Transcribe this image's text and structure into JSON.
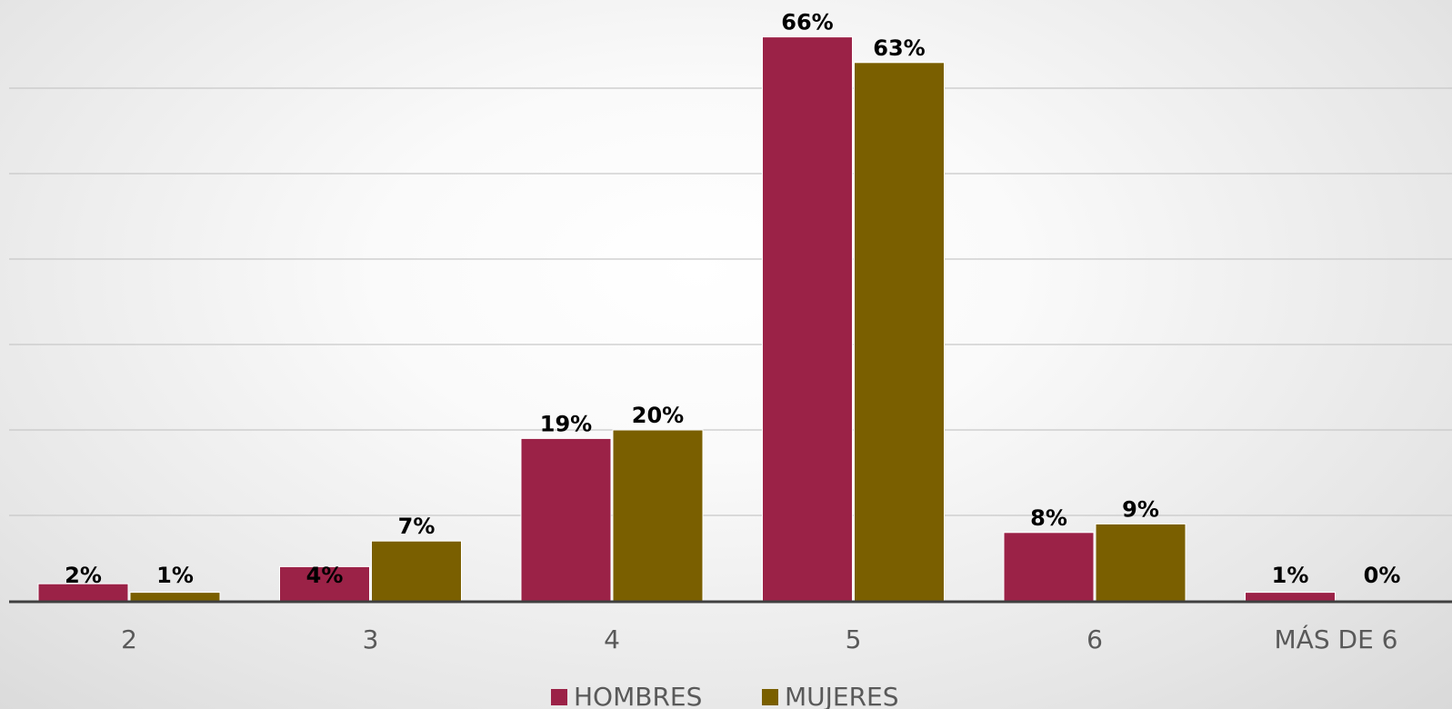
{
  "chart_data": {
    "type": "bar",
    "categories": [
      "2",
      "3",
      "4",
      "5",
      "6",
      "MÁS DE 6"
    ],
    "series": [
      {
        "name": "HOMBRES",
        "values": [
          2,
          4,
          19,
          66,
          8,
          1
        ],
        "labels": [
          "2%",
          "4%",
          "19%",
          "66%",
          "8%",
          "1%"
        ],
        "color": "#9B2247"
      },
      {
        "name": "MUJERES",
        "values": [
          1,
          7,
          20,
          63,
          9,
          0
        ],
        "labels": [
          "1%",
          "7%",
          "20%",
          "63%",
          "9%",
          "0%"
        ],
        "color": "#7A5F00"
      }
    ],
    "title": "",
    "xlabel": "",
    "ylabel": "",
    "ylim": [
      0,
      70
    ],
    "grid": true,
    "legend": "bottom-center",
    "colors": {
      "gridline": "#c8c8c8",
      "axis": "#404040"
    }
  }
}
